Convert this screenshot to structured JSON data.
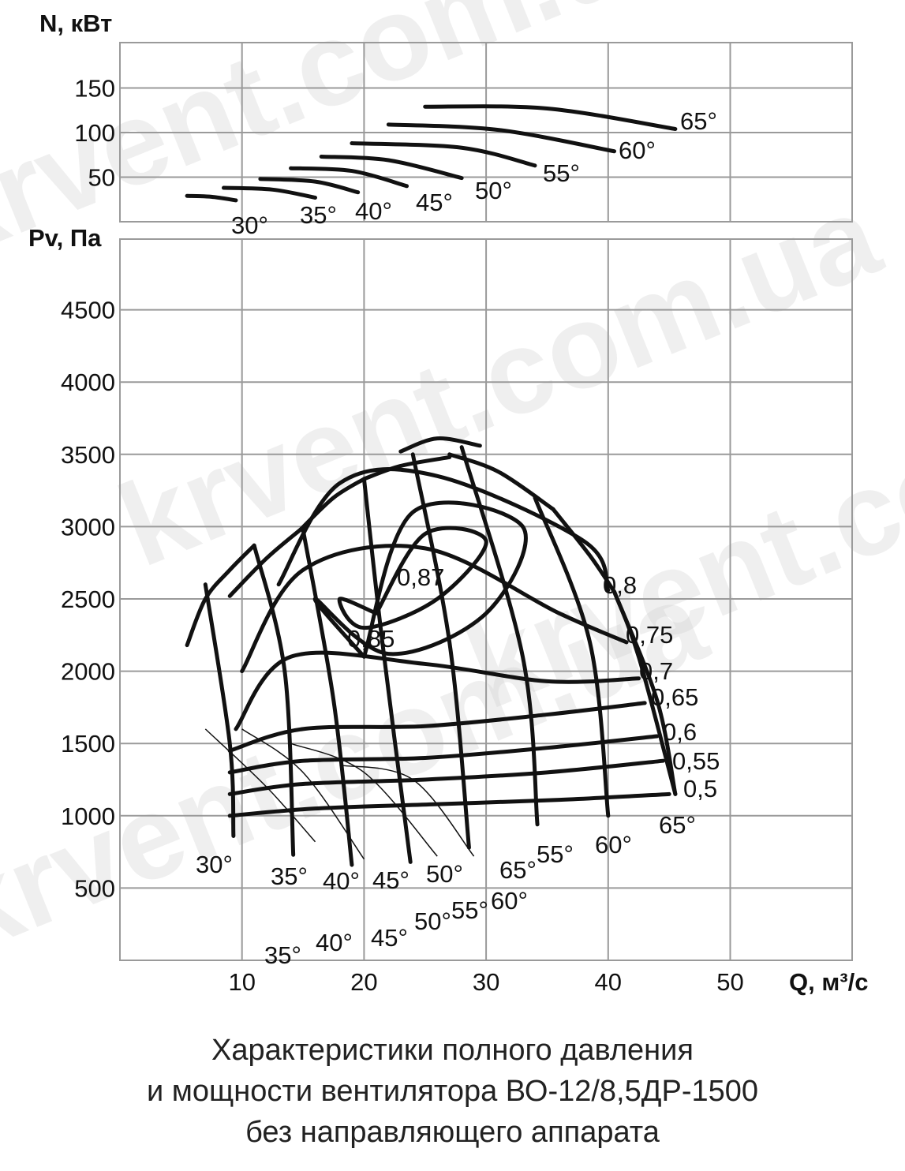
{
  "chart_data": [
    {
      "type": "line",
      "panel": "power",
      "ylabel": "N, кВт",
      "ylim": [
        0,
        200
      ],
      "yticks": [
        50,
        100,
        150
      ],
      "xlim": [
        0,
        60
      ],
      "grid": true,
      "series": [
        {
          "name": "30°",
          "x": [
            5.5,
            7.5,
            9.5
          ],
          "y": [
            29,
            28,
            24
          ]
        },
        {
          "name": "35°",
          "x": [
            8.5,
            12.5,
            16
          ],
          "y": [
            38,
            36,
            27
          ]
        },
        {
          "name": "40°",
          "x": [
            11.5,
            16,
            19.5
          ],
          "y": [
            48,
            45,
            33
          ]
        },
        {
          "name": "45°",
          "x": [
            14,
            19,
            23.5
          ],
          "y": [
            60,
            57,
            40
          ]
        },
        {
          "name": "50°",
          "x": [
            16.5,
            22,
            28
          ],
          "y": [
            73,
            69,
            49
          ]
        },
        {
          "name": "55°",
          "x": [
            19,
            28,
            34
          ],
          "y": [
            88,
            83,
            63
          ]
        },
        {
          "name": "60°",
          "x": [
            22,
            31,
            40.5
          ],
          "y": [
            109,
            103,
            79
          ]
        },
        {
          "name": "65°",
          "x": [
            25,
            35,
            45.5
          ],
          "y": [
            129,
            127,
            104
          ]
        }
      ],
      "labels": [
        "30°",
        "35°",
        "40°",
        "45°",
        "50°",
        "55°",
        "60°",
        "65°"
      ]
    },
    {
      "type": "line",
      "panel": "pressure",
      "ylabel": "Pv, Па",
      "xlabel": "Q, м³/с",
      "ylim": [
        0,
        5000
      ],
      "xlim": [
        0,
        60
      ],
      "yticks": [
        500,
        1000,
        1500,
        2000,
        2500,
        3000,
        3500,
        4000,
        4500
      ],
      "xticks": [
        10,
        20,
        30,
        40,
        50
      ],
      "grid": true,
      "blade_angle_curves": [
        {
          "name": "30°",
          "x": [
            5.5,
            7,
            9,
            11
          ],
          "y": [
            2180,
            2500,
            2700,
            2870
          ]
        },
        {
          "name": "35°",
          "x": [
            9,
            12,
            14.8
          ],
          "y": [
            2520,
            2780,
            2980
          ]
        },
        {
          "name": "40°",
          "x": [
            14.8,
            17.5,
            20
          ],
          "y": [
            2980,
            3200,
            3330
          ]
        },
        {
          "name": "45°",
          "x": [
            20,
            23,
            27
          ],
          "y": [
            3330,
            3420,
            3480
          ]
        },
        {
          "name": "50°",
          "x": [
            23,
            26,
            29.5
          ],
          "y": [
            3520,
            3610,
            3560
          ]
        },
        {
          "name": "55°",
          "x": [
            27,
            31,
            35.5
          ],
          "y": [
            3500,
            3380,
            3120
          ]
        },
        {
          "name": "60°",
          "x": [
            35.5,
            38.5,
            40.5
          ],
          "y": [
            3120,
            2800,
            2550
          ]
        },
        {
          "name": "65°",
          "x": [
            40.5,
            42.5,
            45.5
          ],
          "y": [
            2550,
            2100,
            1150
          ]
        }
      ],
      "efficiency_contours": [
        {
          "name": "0,87",
          "x": [
            21,
            25,
            30,
            26,
            20,
            18,
            21
          ],
          "y": [
            2400,
            2950,
            2900,
            2500,
            2300,
            2500,
            2400
          ]
        },
        {
          "name": "0,85",
          "x": [
            20,
            24,
            33,
            30,
            22,
            16,
            20
          ],
          "y": [
            2100,
            3100,
            3000,
            2400,
            2120,
            2500,
            2100
          ]
        },
        {
          "name": "0,8",
          "x": [
            13,
            18,
            26,
            38,
            40
          ],
          "y": [
            2600,
            3300,
            3350,
            2900,
            2560
          ]
        },
        {
          "name": "0,75",
          "x": [
            10,
            15,
            25,
            36,
            41.5
          ],
          "y": [
            2000,
            2700,
            2850,
            2400,
            2200
          ]
        },
        {
          "name": "0,7",
          "x": [
            9.5,
            14,
            25,
            35,
            42.5
          ],
          "y": [
            1600,
            2100,
            2050,
            1930,
            1950
          ]
        },
        {
          "name": "0,65",
          "x": [
            9,
            15,
            25,
            35,
            43
          ],
          "y": [
            1450,
            1600,
            1620,
            1700,
            1780
          ]
        },
        {
          "name": "0,6",
          "x": [
            9,
            15,
            25,
            35,
            44
          ],
          "y": [
            1300,
            1380,
            1400,
            1470,
            1550
          ]
        },
        {
          "name": "0,55",
          "x": [
            9,
            15,
            25,
            35,
            44.5
          ],
          "y": [
            1150,
            1220,
            1250,
            1300,
            1380
          ]
        },
        {
          "name": "0,5",
          "x": [
            9,
            16,
            26,
            36,
            45
          ],
          "y": [
            1000,
            1050,
            1080,
            1110,
            1150
          ]
        }
      ],
      "labels_angle": [
        "30°",
        "35°",
        "40°",
        "45°",
        "50°",
        "55°",
        "60°",
        "65°"
      ],
      "labels_efficiency": [
        "0,87",
        "0,85",
        "0,8",
        "0,75",
        "0,7",
        "0,65",
        "0,6",
        "0,55",
        "0,5"
      ]
    }
  ],
  "caption": {
    "line1": "Характеристики полного давления",
    "line2": "и мощности вентилятора ВО-12/8,5ДР-1500",
    "line3": "без направляющего аппарата"
  },
  "watermark": "krvent.com.ua",
  "colors": {
    "ink": "#111111",
    "grid": "#9a9a9a",
    "watermark": "#c8c8c8"
  }
}
